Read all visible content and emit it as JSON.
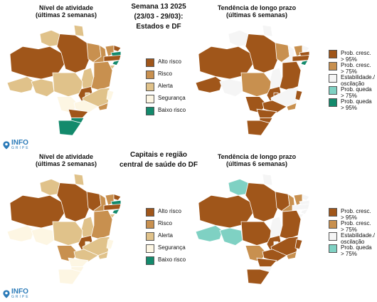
{
  "colors": {
    "alto": "#a0561a",
    "risco": "#c8904f",
    "alerta": "#e0c28a",
    "seguranca": "#fdf6e3",
    "baixo": "#138a6c",
    "estabilidade": "#f5f5f5",
    "queda75": "#7fd1c3",
    "queda95": "#138a6c"
  },
  "header": {
    "line1": "Semana 13 2025",
    "line2": "(23/03 - 29/03):",
    "line3": "Estados e DF"
  },
  "middle": {
    "line1": "Capitais e região",
    "line2": "central de saúde do DF"
  },
  "panels": {
    "tl_title1": "Nível de atividade",
    "tl_title2": "(últimas 2 semanas)",
    "tr_title1": "Tendência de longo prazo",
    "tr_title2": "(últimas 6 semanas)",
    "bl_title1": "Nível de atividade",
    "bl_title2": "(últimas 2 semanas)",
    "br_title1": "Tendência de longo prazo",
    "br_title2": "(últimas 6 semanas)"
  },
  "legend_activity": [
    {
      "label": "Alto risco",
      "color": "#a0561a"
    },
    {
      "label": "Risco",
      "color": "#c8904f"
    },
    {
      "label": "Alerta",
      "color": "#e0c28a"
    },
    {
      "label": "Segurança",
      "color": "#fdf6e3"
    },
    {
      "label": "Baixo risco",
      "color": "#138a6c"
    }
  ],
  "legend_trend_top": [
    {
      "label": "Prob. cresc.\n> 95%",
      "color": "#a0561a"
    },
    {
      "label": "Prob. cresc.\n> 75%",
      "color": "#c8904f"
    },
    {
      "label": "Estabilidade./\noscilação",
      "color": "#f5f5f5"
    },
    {
      "label": "Prob. queda\n> 75%",
      "color": "#7fd1c3"
    },
    {
      "label": "Prob. queda\n> 95%",
      "color": "#138a6c"
    }
  ],
  "legend_trend_bottom": [
    {
      "label": "Prob. cresc.\n> 95%",
      "color": "#a0561a"
    },
    {
      "label": "Prob. cresc.\n> 75%",
      "color": "#c8904f"
    },
    {
      "label": "Estabilidade./\noscilação",
      "color": "#f5f5f5"
    },
    {
      "label": "Prob. queda\n> 75%",
      "color": "#7fd1c3"
    }
  ],
  "logo": {
    "main": "INFO",
    "sub": "GRIPE"
  },
  "maps": {
    "tl": [
      "alerta",
      "alto",
      "alerta",
      "alerta",
      "alto",
      "alerta",
      "alerta",
      "risco",
      "risco",
      "risco",
      "alto",
      "baixo",
      "alto",
      "baixo",
      "alerta",
      "risco",
      "alerta",
      "alto",
      "alerta",
      "seguranca",
      "alerta",
      "seguranca",
      "risco",
      "seguranca",
      "alto",
      "baixo",
      "baixo"
    ],
    "tr": [
      "alto",
      "alto",
      "estabilidade",
      "estabilidade",
      "alto",
      "estabilidade",
      "estabilidade",
      "risco",
      "estabilidade",
      "risco",
      "estabilidade",
      "alto",
      "alto",
      "baixo",
      "estabilidade",
      "alto",
      "risco",
      "alto",
      "alto",
      "alto",
      "estabilidade",
      "alto",
      "risco",
      "alto",
      "alto",
      "alto",
      "alto"
    ],
    "bl": [
      "seguranca",
      "alto",
      "alerta",
      "seguranca",
      "alto",
      "alerta",
      "alerta",
      "alto",
      "risco",
      "risco",
      "alto",
      "baixo",
      "alto",
      "baixo",
      "alerta",
      "risco",
      "alerta",
      "alto",
      "seguranca",
      "risco",
      "alerta",
      "seguranca",
      "alerta",
      "alerta",
      "seguranca",
      "seguranca",
      "seguranca"
    ],
    "br": [
      "queda75",
      "alto",
      "queda75",
      "queda75",
      "alto",
      "estabilidade",
      "estabilidade",
      "alto",
      "risco",
      "risco",
      "estabilidade",
      "estabilidade",
      "estabilidade",
      "estabilidade",
      "estabilidade",
      "alto",
      "alto",
      "alto",
      "estabilidade",
      "risco",
      "alto",
      "alto",
      "risco",
      "alto",
      "alto",
      "estabilidade",
      "alto"
    ]
  }
}
